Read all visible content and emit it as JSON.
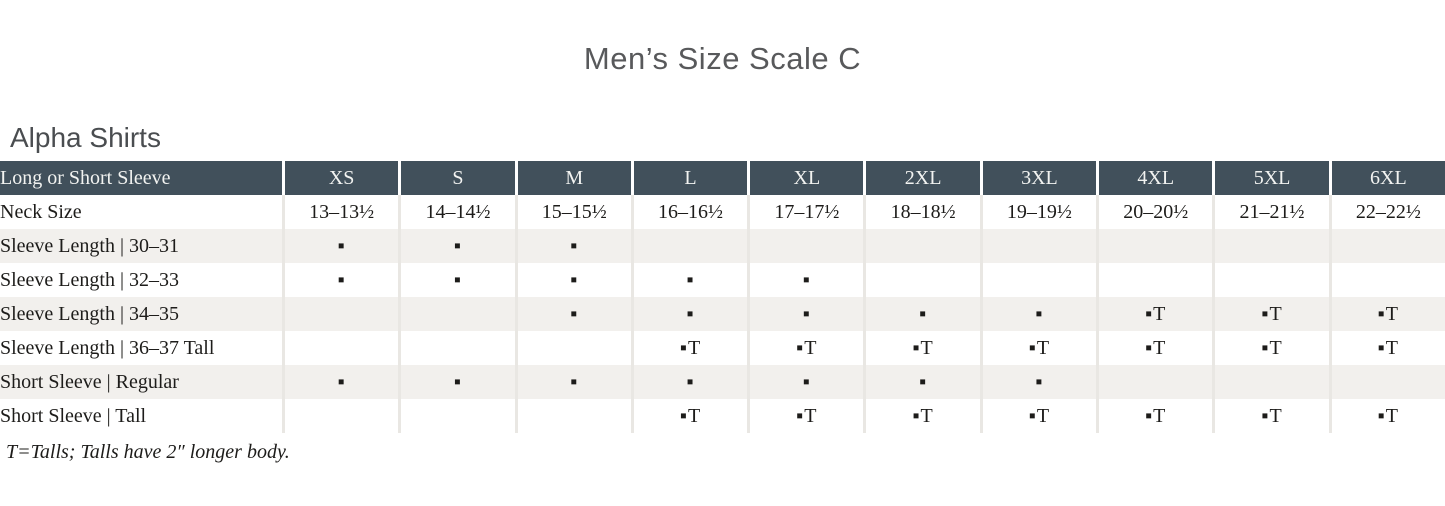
{
  "page": {
    "title": "Men’s Size Scale C",
    "section_title": "Alpha Shirts",
    "footnote": "T=Talls; Talls have 2″ longer body."
  },
  "colors": {
    "header_bg": "#41505b",
    "header_text": "#f2f3f1",
    "row_stripe": "#f2f0ed",
    "body_text": "#1d1c1a",
    "title_text": "#58595b"
  },
  "legend": {
    "dot_glyph": "▪",
    "tall_glyph": "▪T"
  },
  "chart_data": {
    "type": "table",
    "title": "Men’s Size Scale C — Alpha Shirts",
    "header_label": "Long or Short Sleeve",
    "columns": [
      "XS",
      "S",
      "M",
      "L",
      "XL",
      "2XL",
      "3XL",
      "4XL",
      "5XL",
      "6XL"
    ],
    "rows": [
      {
        "label": "Neck Size",
        "cells": [
          "13–13½",
          "14–14½",
          "15–15½",
          "16–16½",
          "17–17½",
          "18–18½",
          "19–19½",
          "20–20½",
          "21–21½",
          "22–22½"
        ]
      },
      {
        "label": "Sleeve Length | 30–31",
        "cells": [
          "▪",
          "▪",
          "▪",
          "",
          "",
          "",
          "",
          "",
          "",
          ""
        ]
      },
      {
        "label": "Sleeve Length | 32–33",
        "cells": [
          "▪",
          "▪",
          "▪",
          "▪",
          "▪",
          "",
          "",
          "",
          "",
          ""
        ]
      },
      {
        "label": "Sleeve Length | 34–35",
        "cells": [
          "",
          "",
          "▪",
          "▪",
          "▪",
          "▪",
          "▪",
          "▪T",
          "▪T",
          "▪T"
        ]
      },
      {
        "label": "Sleeve Length | 36–37 Tall",
        "cells": [
          "",
          "",
          "",
          "▪T",
          "▪T",
          "▪T",
          "▪T",
          "▪T",
          "▪T",
          "▪T"
        ]
      },
      {
        "label": "Short Sleeve | Regular",
        "cells": [
          "▪",
          "▪",
          "▪",
          "▪",
          "▪",
          "▪",
          "▪",
          "",
          "",
          ""
        ]
      },
      {
        "label": "Short Sleeve | Tall",
        "cells": [
          "",
          "",
          "",
          "▪T",
          "▪T",
          "▪T",
          "▪T",
          "▪T",
          "▪T",
          "▪T"
        ]
      }
    ]
  }
}
